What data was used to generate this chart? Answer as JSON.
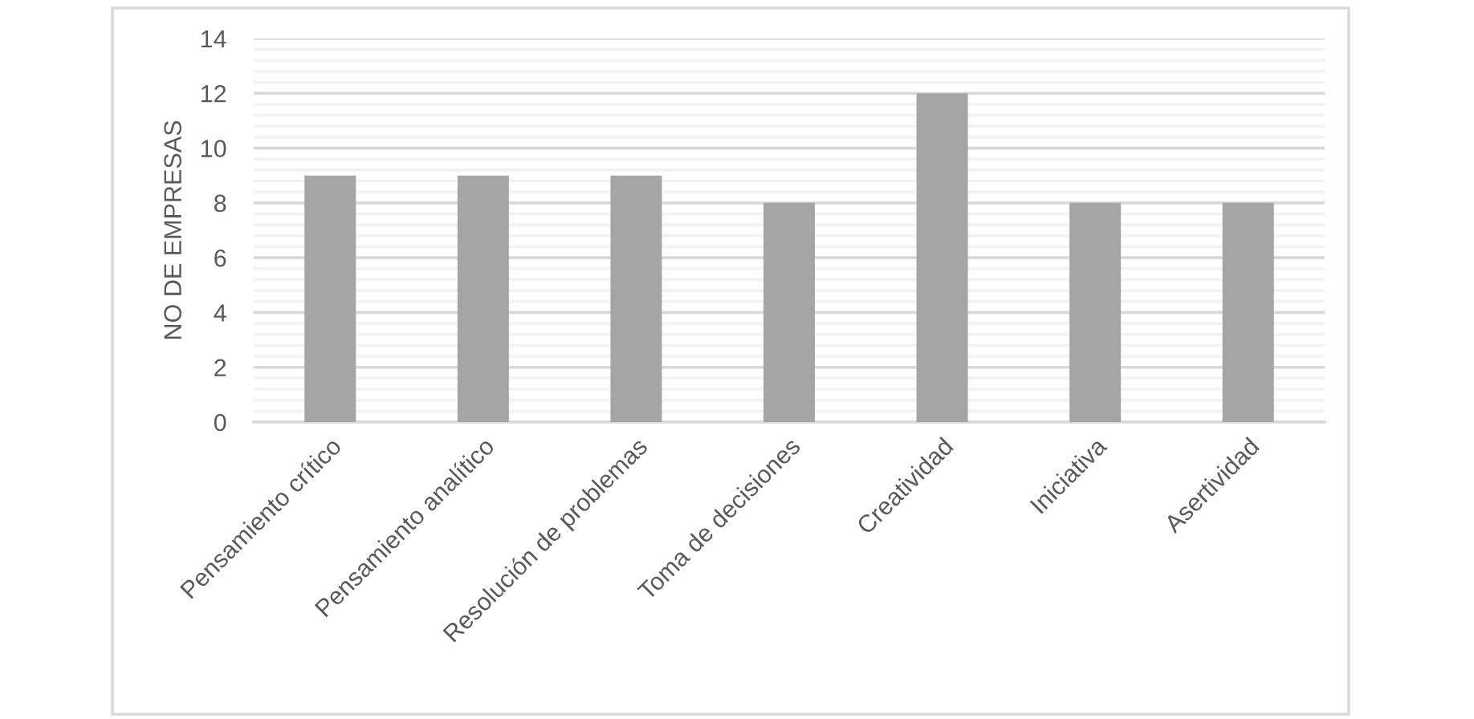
{
  "chart_data": {
    "type": "bar",
    "ylabel": "NO DE EMPRESAS",
    "categories": [
      "Pensamiento crítico",
      "Pensamiento analítico",
      "Resolución de problemas",
      "Toma de decisiones",
      "Creatividad",
      "Iniciativa",
      "Asertividad"
    ],
    "values": [
      9,
      9,
      9,
      8,
      12,
      8,
      8
    ],
    "color": "#a5a5a5",
    "ylim": [
      0,
      14
    ],
    "yticks": [
      0,
      {
        "value": 0.4,
        "label": null
      },
      {
        "value": 0.8,
        "label": null
      },
      {
        "value": 1.2,
        "label": null
      },
      {
        "value": 1.6,
        "label": null
      },
      2,
      {
        "value": 2.4,
        "label": null
      },
      {
        "value": 2.8,
        "label": null
      },
      {
        "value": 3.2,
        "label": null
      },
      {
        "value": 3.6,
        "label": null
      },
      4,
      {
        "value": 4.4,
        "label": null
      },
      {
        "value": 4.8,
        "label": null
      },
      {
        "value": 5.2,
        "label": null
      },
      {
        "value": 5.6,
        "label": null
      },
      6,
      {
        "value": 6.4,
        "label": null
      },
      {
        "value": 6.8,
        "label": null
      },
      {
        "value": 7.2,
        "label": null
      },
      {
        "value": 7.6,
        "label": null
      },
      8,
      {
        "value": 8.4,
        "label": null
      },
      {
        "value": 8.8,
        "label": null
      },
      {
        "value": 9.2,
        "label": null
      },
      {
        "value": 9.6,
        "label": null
      },
      10,
      {
        "value": 10.4,
        "label": null
      },
      {
        "value": 10.8,
        "label": null
      },
      {
        "value": 11.2,
        "label": null
      },
      {
        "value": 11.6,
        "label": null
      },
      12,
      {
        "value": 12.4,
        "label": null
      },
      {
        "value": 12.8,
        "label": null
      },
      {
        "value": 13.2,
        "label": null
      },
      {
        "value": 13.6,
        "label": null
      },
      14
    ],
    "grid": "y"
  }
}
